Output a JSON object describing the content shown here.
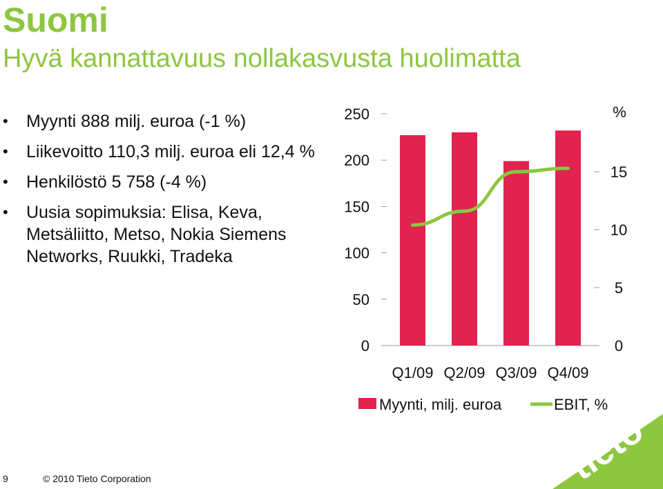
{
  "slide": {
    "title": "Suomi",
    "subtitle": "Hyvä kannattavuus nollakasvusta huolimatta",
    "bullets": [
      "Myynti 888 milj. euroa (-1 %)",
      "Liikevoitto 110,3 milj. euroa eli 12,4 %",
      "Henkilöstö 5 758 (-4 %)",
      "Uusia sopimuksia: Elisa, Keva, Metsäliitto, Metso, Nokia Siemens Networks, Ruukki, Tradeka"
    ],
    "page_number": "9",
    "copyright": "© 2010 Tieto Corporation",
    "logo_text": "tieto"
  },
  "colors": {
    "accent": "#8dc63f",
    "bar": "#e0234f",
    "line": "#8dc63f"
  },
  "chart_data": {
    "type": "bar",
    "categories": [
      "Q1/09",
      "Q2/09",
      "Q3/09",
      "Q4/09"
    ],
    "series": [
      {
        "name": "Myynti, milj. euroa",
        "type": "bar",
        "axis": "left",
        "values": [
          227,
          230,
          199,
          232
        ]
      },
      {
        "name": "EBIT, %",
        "type": "line",
        "axis": "right",
        "values": [
          10.4,
          11.6,
          15.0,
          15.3
        ]
      }
    ],
    "y_left": {
      "range": [
        0,
        250
      ],
      "ticks": [
        "0",
        "50",
        "100",
        "150",
        "200",
        "250"
      ]
    },
    "y_right": {
      "range": [
        0,
        20
      ],
      "ticks": [
        "0",
        "5",
        "10",
        "15"
      ],
      "unit_label": "%"
    },
    "legend_position": "bottom",
    "grid": false
  }
}
